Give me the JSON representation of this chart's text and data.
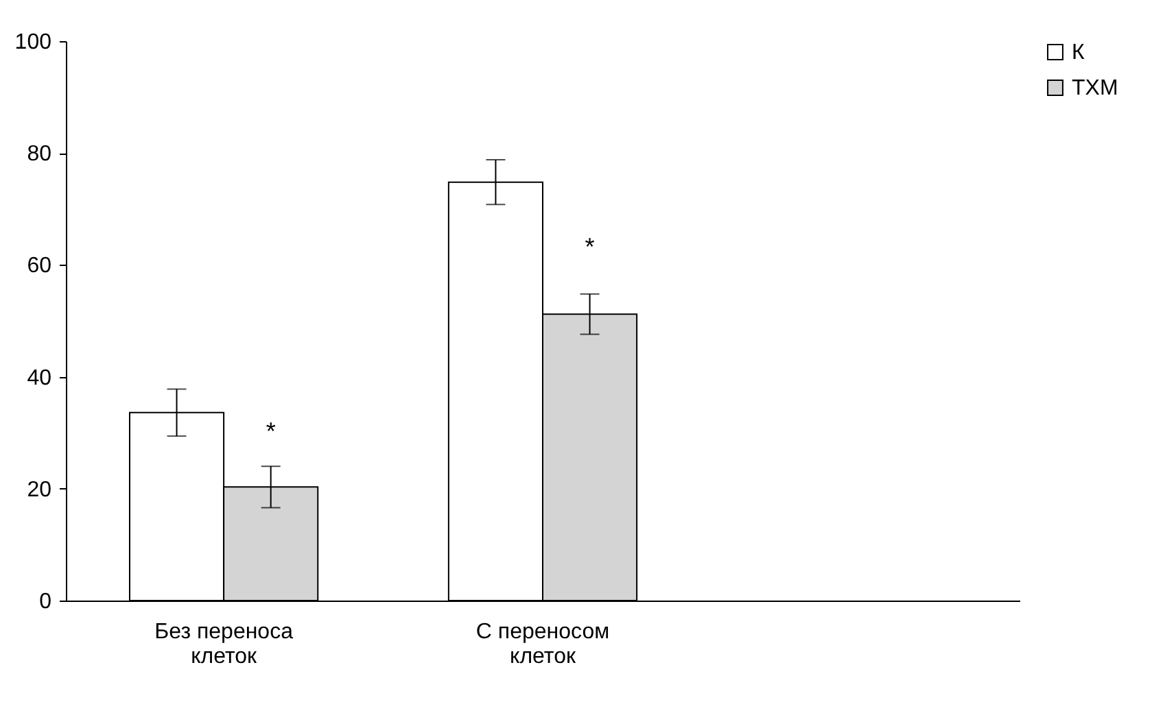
{
  "chart_data": {
    "type": "bar",
    "categories": [
      "Без переноса клеток",
      "С переносом клеток",
      null
    ],
    "series": [
      {
        "name": "К",
        "color": "#ffffff",
        "values": [
          33.6,
          74.8,
          null
        ],
        "errors": [
          4.2,
          4.0,
          null
        ]
      },
      {
        "name": "ТХМ",
        "color": "#d4d4d4",
        "values": [
          20.3,
          51.2,
          null
        ],
        "errors": [
          3.7,
          3.6,
          null
        ]
      }
    ],
    "ylim": [
      0,
      100
    ],
    "yticks": [
      0,
      20,
      40,
      60,
      80,
      100
    ],
    "annotations": [
      {
        "text": "*",
        "x": "Без переноса клеток",
        "y": 30
      },
      {
        "text": "*",
        "x": "С переносом клеток",
        "y": 63
      }
    ],
    "grid": false,
    "legend": "right"
  }
}
